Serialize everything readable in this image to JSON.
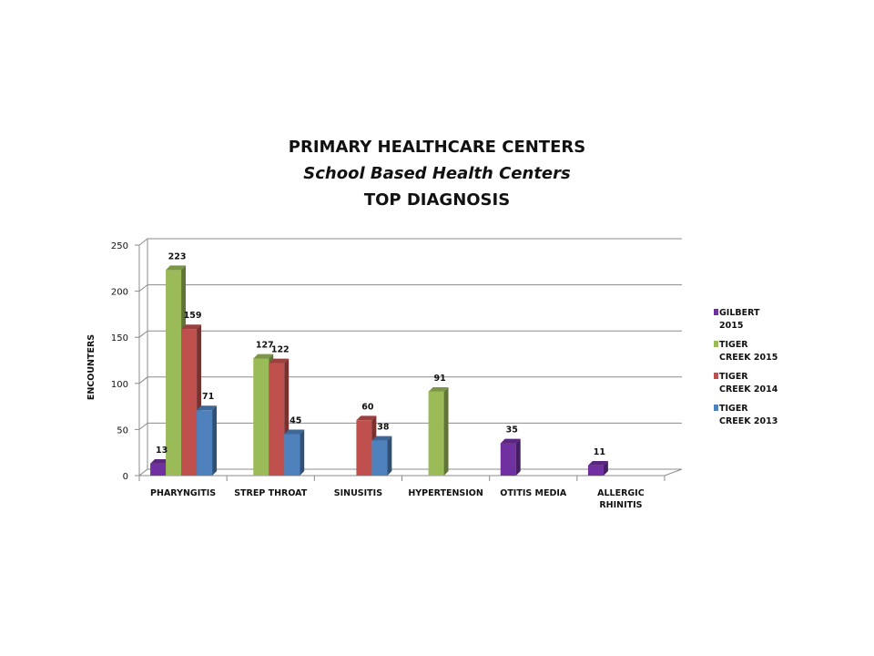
{
  "chart_data": {
    "type": "bar",
    "title": "PRIMARY HEALTHCARE CENTERS",
    "subtitle": "School Based Health Centers",
    "subtitle2": "TOP DIAGNOSIS",
    "ylabel": "ENCOUNTERS",
    "xlabel": "",
    "ylim": [
      0,
      250
    ],
    "yticks": [
      0,
      50,
      100,
      150,
      200,
      250
    ],
    "grid": true,
    "legend_position": "right",
    "categories": [
      [
        "PHARYNGITIS"
      ],
      [
        "STREP THROAT"
      ],
      [
        "SINUSITIS"
      ],
      [
        "HYPERTENSION"
      ],
      [
        "OTITIS MEDIA"
      ],
      [
        "ALLERGIC",
        "RHINITIS"
      ]
    ],
    "series": [
      {
        "name": [
          "GILBERT",
          "2015"
        ],
        "color": "#7030A0",
        "values": [
          13,
          null,
          null,
          null,
          35,
          11
        ]
      },
      {
        "name": [
          "TIGER",
          "CREEK 2015"
        ],
        "color": "#9BBB59",
        "values": [
          223,
          127,
          null,
          91,
          null,
          null
        ]
      },
      {
        "name": [
          "TIGER",
          "CREEK 2014"
        ],
        "color": "#C0504D",
        "values": [
          159,
          122,
          60,
          null,
          null,
          null
        ]
      },
      {
        "name": [
          "TIGER",
          "CREEK 2013"
        ],
        "color": "#4F81BD",
        "values": [
          71,
          45,
          38,
          null,
          null,
          null
        ]
      }
    ]
  }
}
